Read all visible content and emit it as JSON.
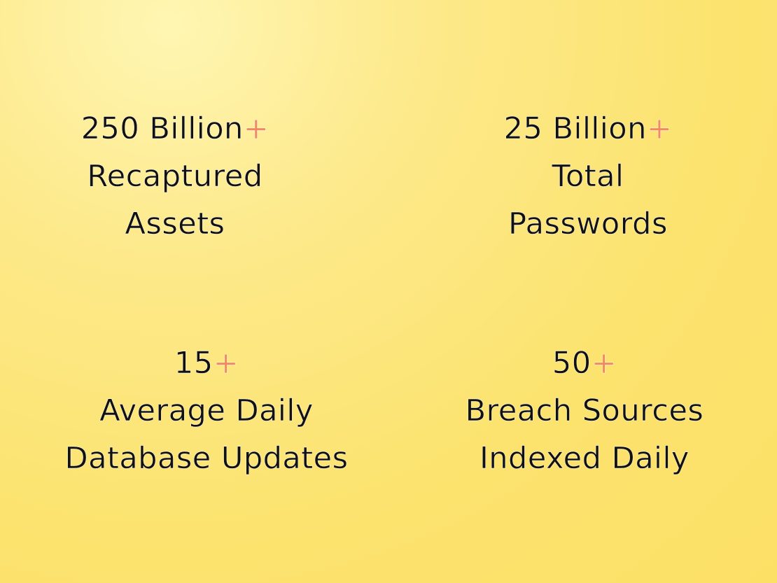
{
  "accent_color": "#f08a5d",
  "stats": [
    {
      "value": "250 Billion",
      "suffix": "+",
      "label_lines": [
        "Recaptured",
        "Assets"
      ]
    },
    {
      "value": "25 Billion",
      "suffix": "+",
      "label_lines": [
        "Total",
        "Passwords"
      ]
    },
    {
      "value": "15",
      "suffix": "+",
      "label_lines": [
        "Average Daily",
        "Database Updates"
      ]
    },
    {
      "value": "50",
      "suffix": "+",
      "label_lines": [
        "Breach Sources",
        "Indexed Daily"
      ]
    }
  ]
}
